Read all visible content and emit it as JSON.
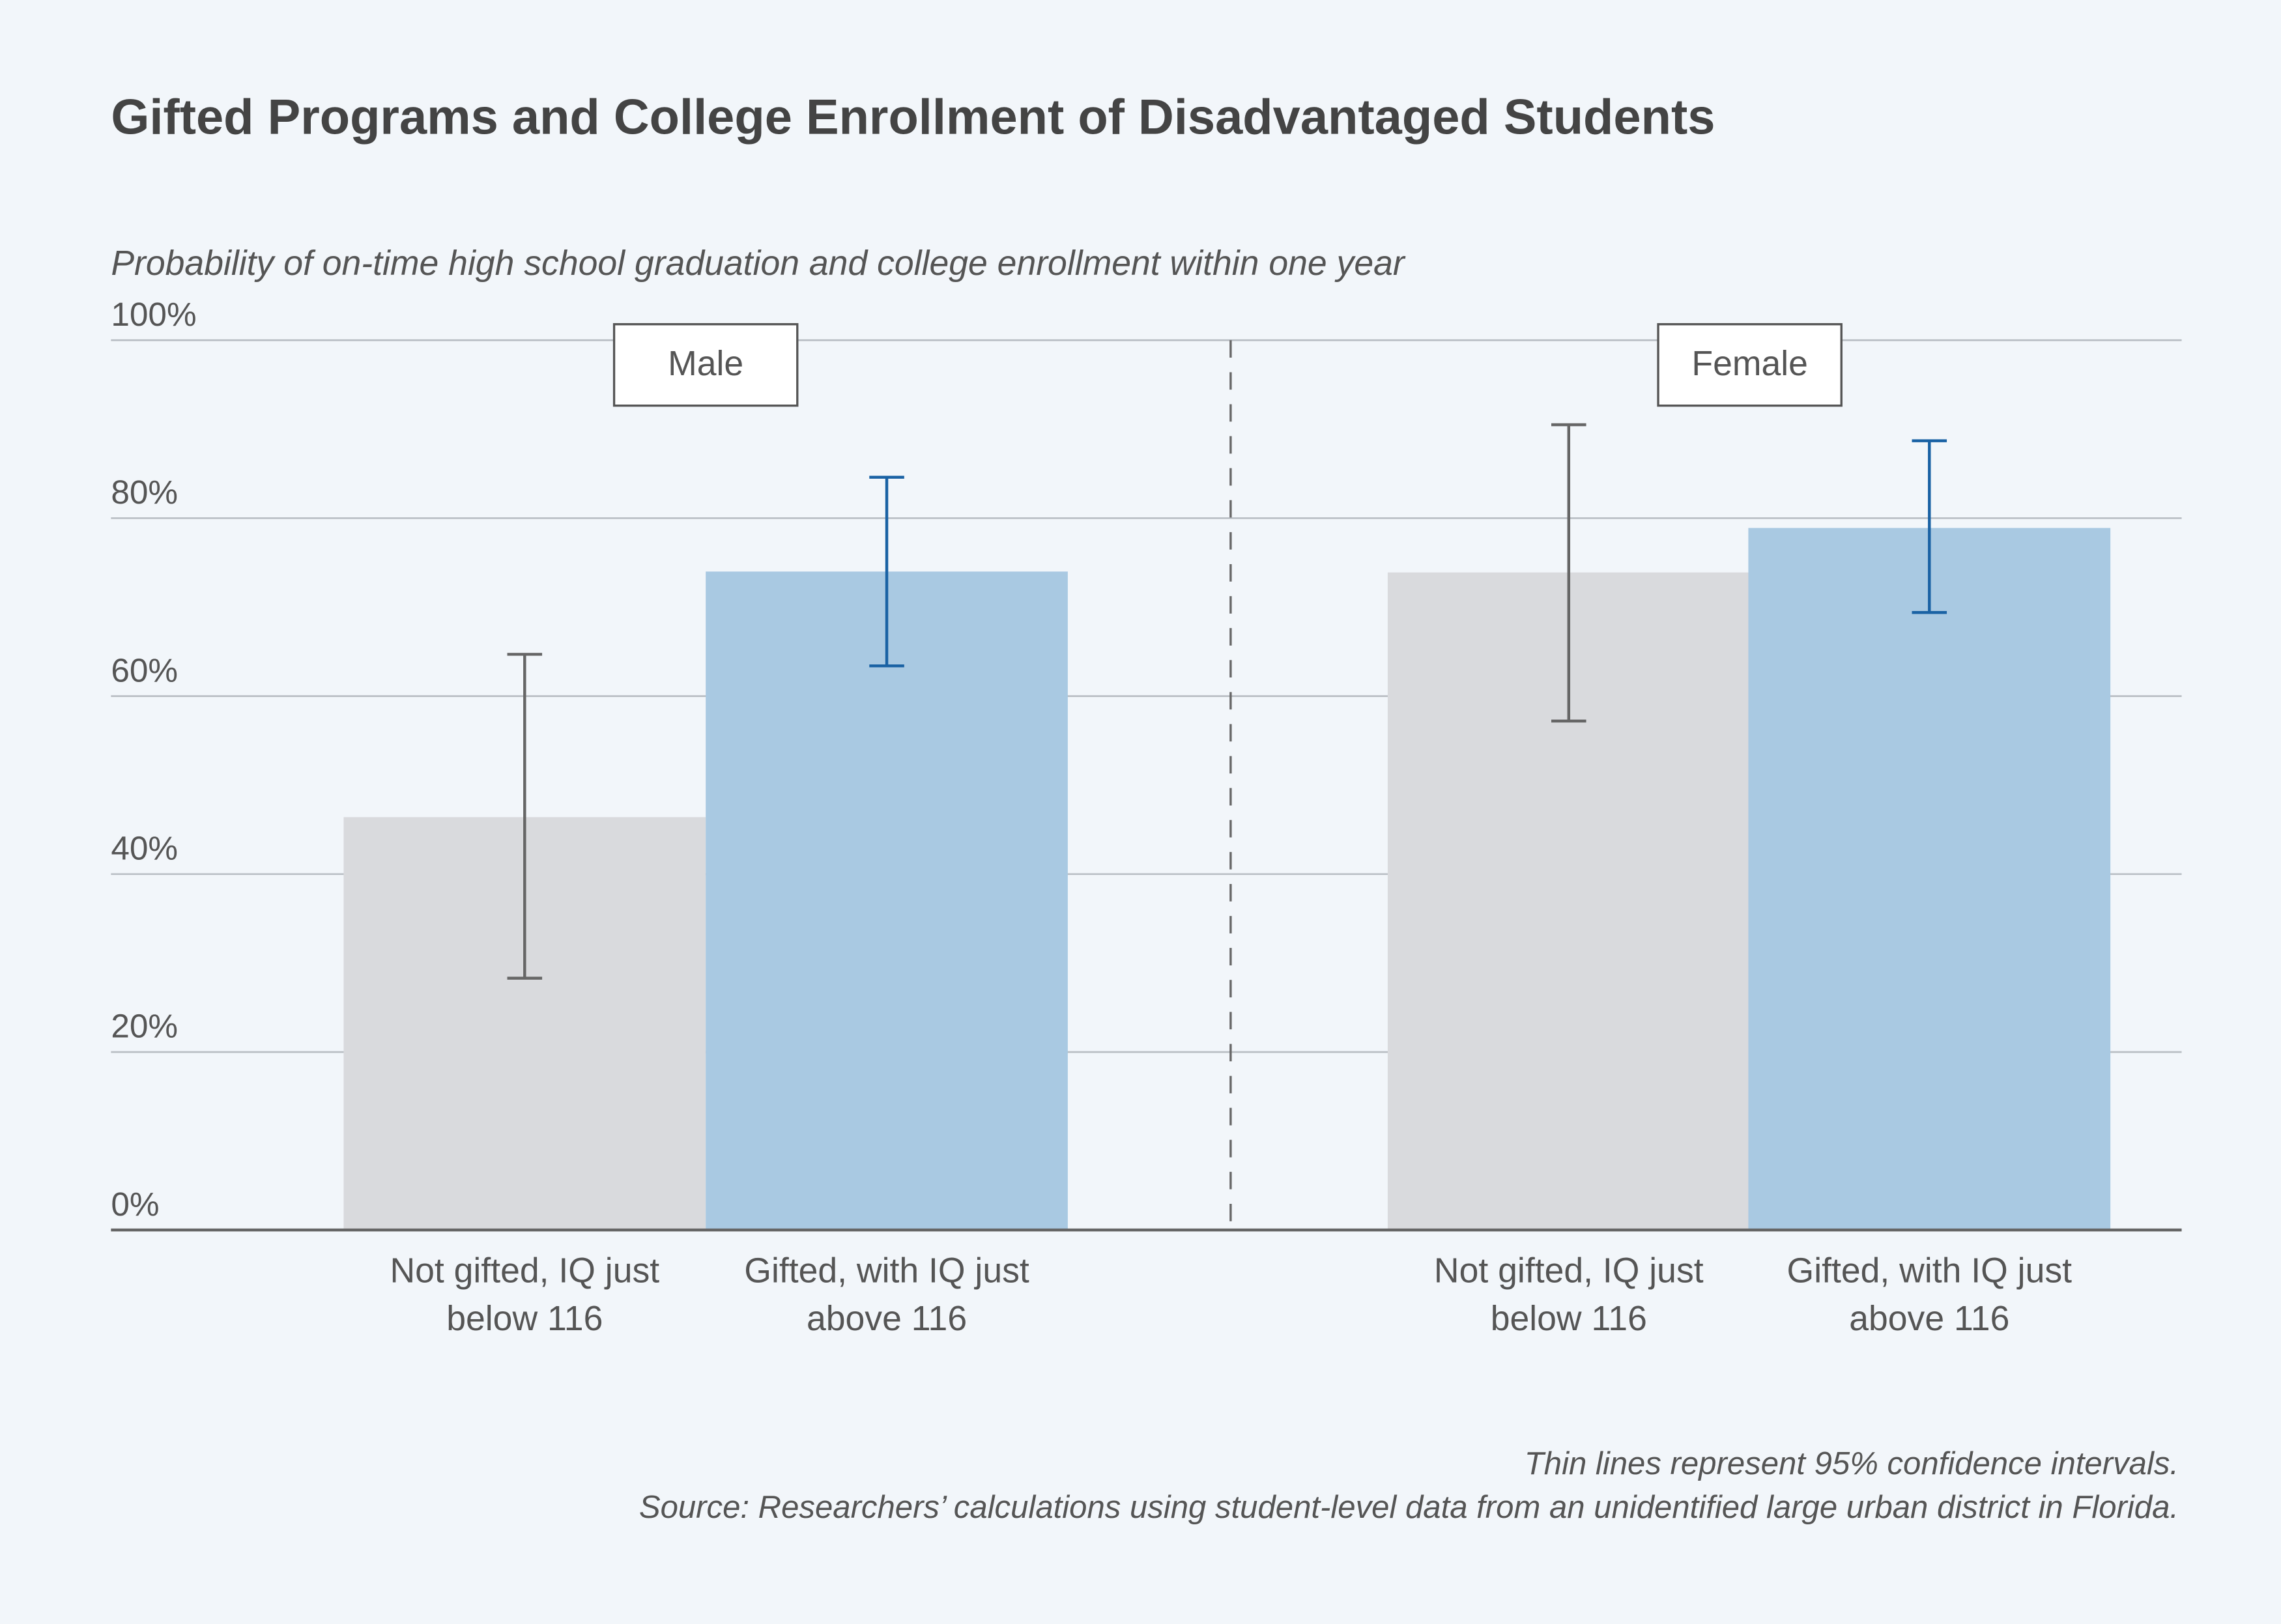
{
  "chart_data": {
    "type": "bar",
    "title": "Gifted Programs and College Enrollment of Disadvantaged Students",
    "subtitle": "Probability of on-time high school graduation and college enrollment within one year",
    "ylim": [
      0,
      100
    ],
    "yticks": [
      "0%",
      "20%",
      "40%",
      "60%",
      "80%",
      "100%"
    ],
    "grid": true,
    "panels": [
      {
        "label": "Male",
        "bars": [
          {
            "category": [
              "Not gifted, IQ just",
              "below 116"
            ],
            "value": 46.4,
            "ci": [
              28.3,
              64.7
            ],
            "color": "#d9dadd",
            "ci_color": "#666666"
          },
          {
            "category": [
              "Gifted, with IQ just",
              "above 116"
            ],
            "value": 74.0,
            "ci": [
              63.4,
              84.6
            ],
            "color": "#a9c9e2",
            "ci_color": "#1a62a4"
          }
        ]
      },
      {
        "label": "Female",
        "bars": [
          {
            "category": [
              "Not gifted, IQ just",
              "below 116"
            ],
            "value": 73.9,
            "ci": [
              57.2,
              90.5
            ],
            "color": "#d9dadd",
            "ci_color": "#666666"
          },
          {
            "category": [
              "Gifted, with IQ just",
              "above 116"
            ],
            "value": 78.9,
            "ci": [
              69.4,
              88.7
            ],
            "color": "#a9c9e2",
            "ci_color": "#1a62a4"
          }
        ]
      }
    ],
    "notes": [
      "Thin lines represent 95% confidence intervals.",
      "Source: Researchers’ calculations using student-level data from an unidentified large urban district in Florida."
    ]
  }
}
